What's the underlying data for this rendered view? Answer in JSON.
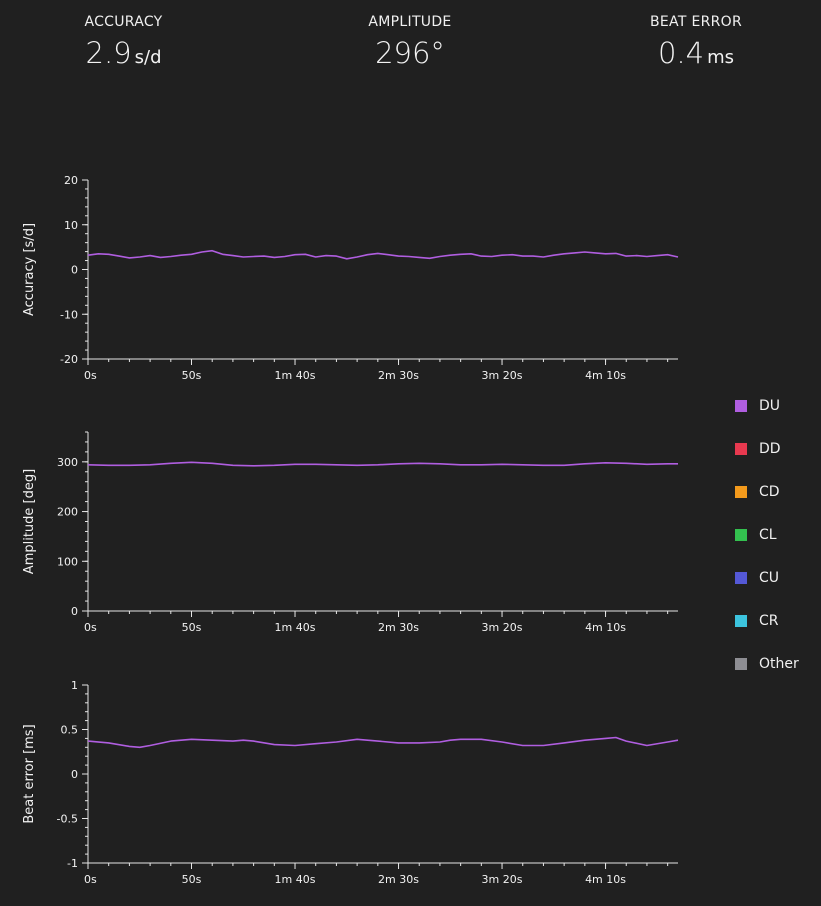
{
  "metrics": {
    "accuracy": {
      "label": "ACCURACY",
      "value": "2.9",
      "unit": "s/d"
    },
    "amplitude": {
      "label": "AMPLITUDE",
      "value": "296°",
      "unit": ""
    },
    "beat_error": {
      "label": "BEAT ERROR",
      "value": "0.4",
      "unit": "ms"
    }
  },
  "legend": [
    {
      "label": "DU",
      "color": "#b05ee0"
    },
    {
      "label": "DD",
      "color": "#e8394f"
    },
    {
      "label": "CD",
      "color": "#f39a1c"
    },
    {
      "label": "CL",
      "color": "#33c14f"
    },
    {
      "label": "CU",
      "color": "#5458d6"
    },
    {
      "label": "CR",
      "color": "#3cc4de"
    },
    {
      "label": "Other",
      "color": "#8e8e93"
    }
  ],
  "chart_data": [
    {
      "type": "line",
      "ylabel": "Accuracy [s/d]",
      "ylim": [
        -20,
        20
      ],
      "yticks": [
        "20",
        "10",
        "0",
        "-10",
        "-20"
      ],
      "xlim": [
        0,
        285
      ],
      "xticks": [
        "0s",
        "50s",
        "1m 40s",
        "2m 30s",
        "3m 20s",
        "4m 10s"
      ],
      "series": [
        {
          "color": "#b05ee0",
          "x": [
            0,
            5,
            10,
            15,
            20,
            25,
            30,
            35,
            40,
            45,
            50,
            55,
            60,
            65,
            70,
            75,
            80,
            85,
            90,
            95,
            100,
            105,
            110,
            115,
            120,
            125,
            130,
            135,
            140,
            145,
            150,
            155,
            160,
            165,
            170,
            175,
            180,
            185,
            190,
            195,
            200,
            205,
            210,
            215,
            220,
            225,
            230,
            235,
            240,
            245,
            250,
            255,
            260,
            265,
            270,
            275,
            280,
            285
          ],
          "y": [
            3.2,
            3.5,
            3.4,
            3.0,
            2.6,
            2.8,
            3.1,
            2.7,
            2.9,
            3.2,
            3.4,
            3.9,
            4.2,
            3.4,
            3.1,
            2.8,
            2.9,
            3.0,
            2.7,
            2.9,
            3.3,
            3.4,
            2.8,
            3.1,
            3.0,
            2.4,
            2.8,
            3.3,
            3.6,
            3.3,
            3.0,
            2.9,
            2.7,
            2.5,
            2.9,
            3.2,
            3.4,
            3.5,
            3.0,
            2.9,
            3.2,
            3.3,
            3.0,
            3.0,
            2.8,
            3.2,
            3.5,
            3.7,
            3.9,
            3.7,
            3.5,
            3.6,
            3.0,
            3.1,
            2.9,
            3.1,
            3.3,
            2.8
          ]
        }
      ]
    },
    {
      "type": "line",
      "ylabel": "Amplitude [deg]",
      "ylim": [
        0,
        360
      ],
      "yticks": [
        "300",
        "200",
        "100",
        "0"
      ],
      "xlim": [
        0,
        285
      ],
      "xticks": [
        "0s",
        "50s",
        "1m 40s",
        "2m 30s",
        "3m 20s",
        "4m 10s"
      ],
      "series": [
        {
          "color": "#b05ee0",
          "x": [
            0,
            10,
            20,
            30,
            40,
            50,
            60,
            70,
            80,
            90,
            100,
            110,
            120,
            130,
            140,
            150,
            160,
            170,
            180,
            190,
            200,
            210,
            220,
            230,
            240,
            250,
            260,
            270,
            280,
            285
          ],
          "y": [
            294,
            293,
            293,
            294,
            297,
            299,
            297,
            293,
            292,
            293,
            295,
            295,
            294,
            293,
            294,
            296,
            297,
            296,
            294,
            294,
            295,
            294,
            293,
            293,
            296,
            298,
            297,
            295,
            296,
            296
          ]
        }
      ]
    },
    {
      "type": "line",
      "ylabel": "Beat error [ms]",
      "ylim": [
        -1,
        1
      ],
      "yticks": [
        "1",
        "0.5",
        "0",
        "-0.5",
        "-1"
      ],
      "xlim": [
        0,
        285
      ],
      "xticks": [
        "0s",
        "50s",
        "1m 40s",
        "2m 30s",
        "3m 20s",
        "4m 10s"
      ],
      "series": [
        {
          "color": "#b05ee0",
          "x": [
            0,
            10,
            20,
            25,
            30,
            40,
            50,
            60,
            70,
            75,
            80,
            90,
            100,
            110,
            120,
            130,
            140,
            150,
            160,
            170,
            175,
            180,
            190,
            200,
            210,
            220,
            230,
            240,
            250,
            255,
            260,
            270,
            280,
            285
          ],
          "y": [
            0.37,
            0.35,
            0.31,
            0.3,
            0.32,
            0.37,
            0.39,
            0.38,
            0.37,
            0.38,
            0.37,
            0.33,
            0.32,
            0.34,
            0.36,
            0.39,
            0.37,
            0.35,
            0.35,
            0.36,
            0.38,
            0.39,
            0.39,
            0.36,
            0.32,
            0.32,
            0.35,
            0.38,
            0.4,
            0.41,
            0.37,
            0.32,
            0.36,
            0.38
          ]
        }
      ]
    }
  ]
}
